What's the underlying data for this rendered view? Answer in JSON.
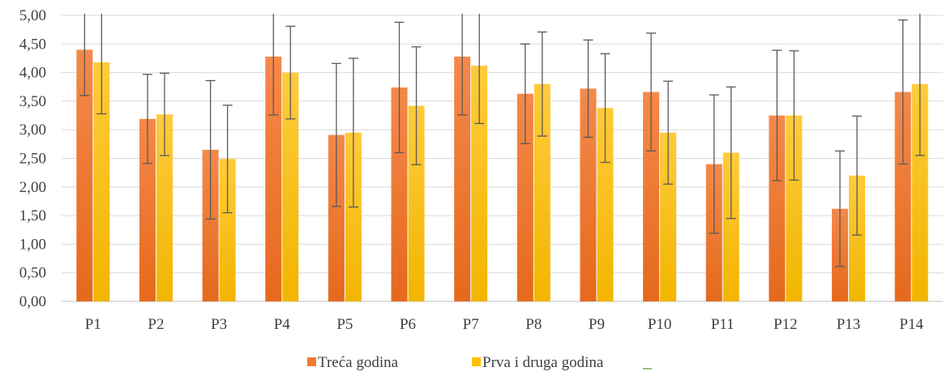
{
  "chart_data": {
    "type": "bar",
    "categories": [
      "P1",
      "P2",
      "P3",
      "P4",
      "P5",
      "P6",
      "P7",
      "P8",
      "P9",
      "P10",
      "P11",
      "P12",
      "P13",
      "P14"
    ],
    "ylim": [
      0,
      5
    ],
    "yticks": [
      "0,00",
      "0,50",
      "1,00",
      "1,50",
      "2,00",
      "2,50",
      "3,00",
      "3,50",
      "4,00",
      "4,50",
      "5,00"
    ],
    "grid": true,
    "legend": "bottom",
    "series": [
      {
        "name": "Treća godina",
        "color": "#ED7D31",
        "values": [
          4.4,
          3.19,
          2.65,
          4.28,
          2.91,
          3.74,
          4.28,
          3.63,
          3.72,
          3.66,
          2.4,
          3.25,
          1.62,
          3.66
        ],
        "error": [
          0.8,
          0.78,
          1.21,
          1.02,
          1.25,
          1.14,
          1.02,
          0.87,
          0.85,
          1.03,
          1.21,
          1.14,
          1.01,
          1.26
        ]
      },
      {
        "name": "Prva i druga godina",
        "color": "#FFC000",
        "values": [
          4.18,
          3.27,
          2.49,
          4.0,
          2.95,
          3.42,
          4.12,
          3.8,
          3.38,
          2.95,
          2.6,
          3.25,
          2.2,
          3.8
        ],
        "error": [
          0.9,
          0.72,
          0.94,
          0.81,
          1.3,
          1.03,
          1.01,
          0.91,
          0.95,
          0.9,
          1.15,
          1.13,
          1.04,
          1.25
        ]
      }
    ],
    "legend_extra_marker": "–"
  }
}
